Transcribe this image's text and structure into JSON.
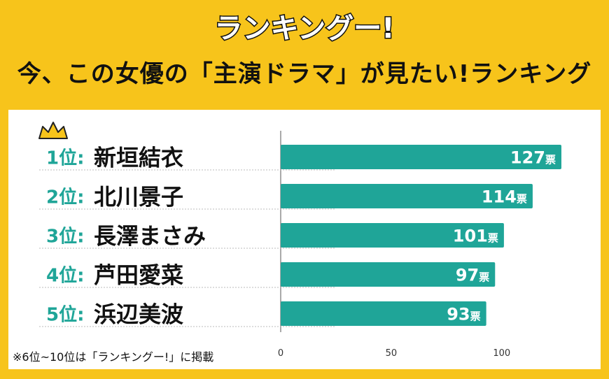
{
  "header": {
    "logo_text": "ランキングー!",
    "title": "今、この女優の「主演ドラマ」が見たい!ランキング"
  },
  "chart_data": {
    "type": "bar",
    "orientation": "horizontal",
    "categories": [
      "新垣結衣",
      "北川景子",
      "長澤まさみ",
      "芦田愛菜",
      "浜辺美波"
    ],
    "ranks": [
      "1位:",
      "2位:",
      "3位:",
      "4位:",
      "5位:"
    ],
    "values": [
      127,
      114,
      101,
      97,
      93
    ],
    "unit": "票",
    "xlim": [
      0,
      127
    ],
    "xticks": [
      0,
      50,
      100
    ],
    "grid": false,
    "bar_color": "#1FA598",
    "rank_color": "#1FA598"
  },
  "footnote": "※6位~10位は「ランキングー!」に掲載",
  "colors": {
    "background": "#F7C41B",
    "panel": "#FFFFFF",
    "bar": "#1FA598"
  }
}
